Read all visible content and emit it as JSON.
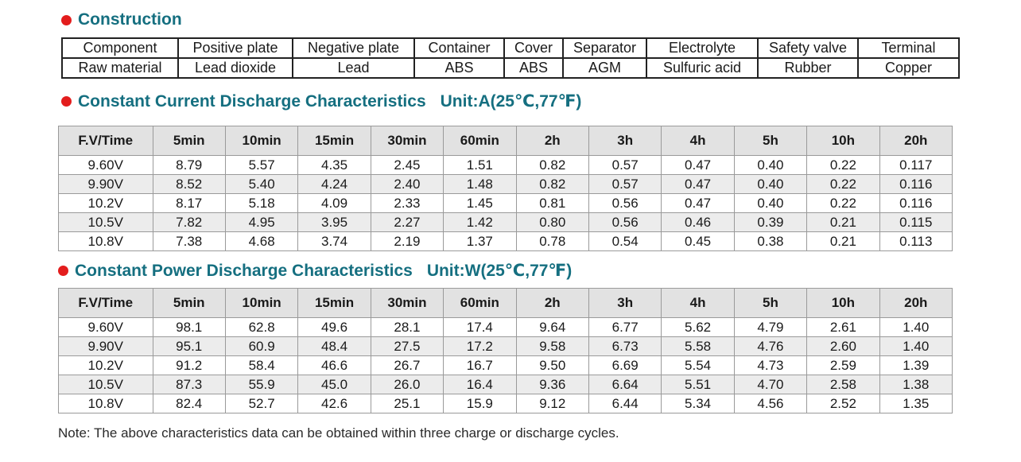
{
  "construction": {
    "title": "Construction",
    "headers": [
      "Component",
      "Positive plate",
      "Negative plate",
      "Container",
      "Cover",
      "Separator",
      "Electrolyte",
      "Safety valve",
      "Terminal"
    ],
    "values": [
      "Raw material",
      "Lead dioxide",
      "Lead",
      "ABS",
      "ABS",
      "AGM",
      "Sulfuric acid",
      "Rubber",
      "Copper"
    ]
  },
  "current": {
    "title": "Constant Current Discharge Characteristics",
    "unit": "Unit:A(25℃,77℉)",
    "headers": [
      "F.V/Time",
      "5min",
      "10min",
      "15min",
      "30min",
      "60min",
      "2h",
      "3h",
      "4h",
      "5h",
      "10h",
      "20h"
    ],
    "rows": [
      [
        "9.60V",
        "8.79",
        "5.57",
        "4.35",
        "2.45",
        "1.51",
        "0.82",
        "0.57",
        "0.47",
        "0.40",
        "0.22",
        "0.117"
      ],
      [
        "9.90V",
        "8.52",
        "5.40",
        "4.24",
        "2.40",
        "1.48",
        "0.82",
        "0.57",
        "0.47",
        "0.40",
        "0.22",
        "0.116"
      ],
      [
        "10.2V",
        "8.17",
        "5.18",
        "4.09",
        "2.33",
        "1.45",
        "0.81",
        "0.56",
        "0.47",
        "0.40",
        "0.22",
        "0.116"
      ],
      [
        "10.5V",
        "7.82",
        "4.95",
        "3.95",
        "2.27",
        "1.42",
        "0.80",
        "0.56",
        "0.46",
        "0.39",
        "0.21",
        "0.115"
      ],
      [
        "10.8V",
        "7.38",
        "4.68",
        "3.74",
        "2.19",
        "1.37",
        "0.78",
        "0.54",
        "0.45",
        "0.38",
        "0.21",
        "0.113"
      ]
    ]
  },
  "power": {
    "title": "Constant Power Discharge Characteristics",
    "unit": "Unit:W(25℃,77℉)",
    "headers": [
      "F.V/Time",
      "5min",
      "10min",
      "15min",
      "30min",
      "60min",
      "2h",
      "3h",
      "4h",
      "5h",
      "10h",
      "20h"
    ],
    "rows": [
      [
        "9.60V",
        "98.1",
        "62.8",
        "49.6",
        "28.1",
        "17.4",
        "9.64",
        "6.77",
        "5.62",
        "4.79",
        "2.61",
        "1.40"
      ],
      [
        "9.90V",
        "95.1",
        "60.9",
        "48.4",
        "27.5",
        "17.2",
        "9.58",
        "6.73",
        "5.58",
        "4.76",
        "2.60",
        "1.40"
      ],
      [
        "10.2V",
        "91.2",
        "58.4",
        "46.6",
        "26.7",
        "16.7",
        "9.50",
        "6.69",
        "5.54",
        "4.73",
        "2.59",
        "1.39"
      ],
      [
        "10.5V",
        "87.3",
        "55.9",
        "45.0",
        "26.0",
        "16.4",
        "9.36",
        "6.64",
        "5.51",
        "4.70",
        "2.58",
        "1.38"
      ],
      [
        "10.8V",
        "82.4",
        "52.7",
        "42.6",
        "25.1",
        "15.9",
        "9.12",
        "6.44",
        "5.34",
        "4.56",
        "2.52",
        "1.35"
      ]
    ]
  },
  "note": "Note: The above characteristics data can be obtained within three charge or discharge cycles.",
  "colors": {
    "title": "#156f80",
    "bullet": "#e31d1d",
    "header_bg": "#e2e2e2",
    "alt_row_bg": "#ececec"
  }
}
